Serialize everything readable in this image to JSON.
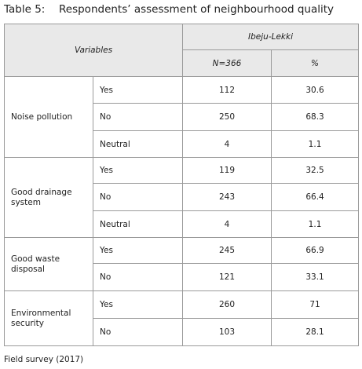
{
  "title": {
    "label": "Table 5:",
    "text": "Respondents’ assessment of neighbourhood quality"
  },
  "table": {
    "variables_header": "Variables",
    "group_header": "Ibeju-Lekki",
    "columns": [
      "N=366",
      "%"
    ],
    "groups": [
      {
        "variable": "Noise pollution",
        "rows": [
          {
            "response": "Yes",
            "n": 112,
            "percent": 30.6
          },
          {
            "response": "No",
            "n": 250,
            "percent": 68.3
          },
          {
            "response": "Neutral",
            "n": 4,
            "percent": 1.1
          }
        ]
      },
      {
        "variable": "Good drainage system",
        "rows": [
          {
            "response": "Yes",
            "n": 119,
            "percent": 32.5
          },
          {
            "response": "No",
            "n": 243,
            "percent": 66.4
          },
          {
            "response": "Neutral",
            "n": 4,
            "percent": 1.1
          }
        ]
      },
      {
        "variable": "Good waste disposal",
        "rows": [
          {
            "response": "Yes",
            "n": 245,
            "percent": 66.9
          },
          {
            "response": "No",
            "n": 121,
            "percent": 33.1
          }
        ]
      },
      {
        "variable": "Environmental security",
        "rows": [
          {
            "response": "Yes",
            "n": 260,
            "percent": 71
          },
          {
            "response": "No",
            "n": 103,
            "percent": 28.1
          }
        ]
      }
    ]
  },
  "source": "Field survey (2017)"
}
